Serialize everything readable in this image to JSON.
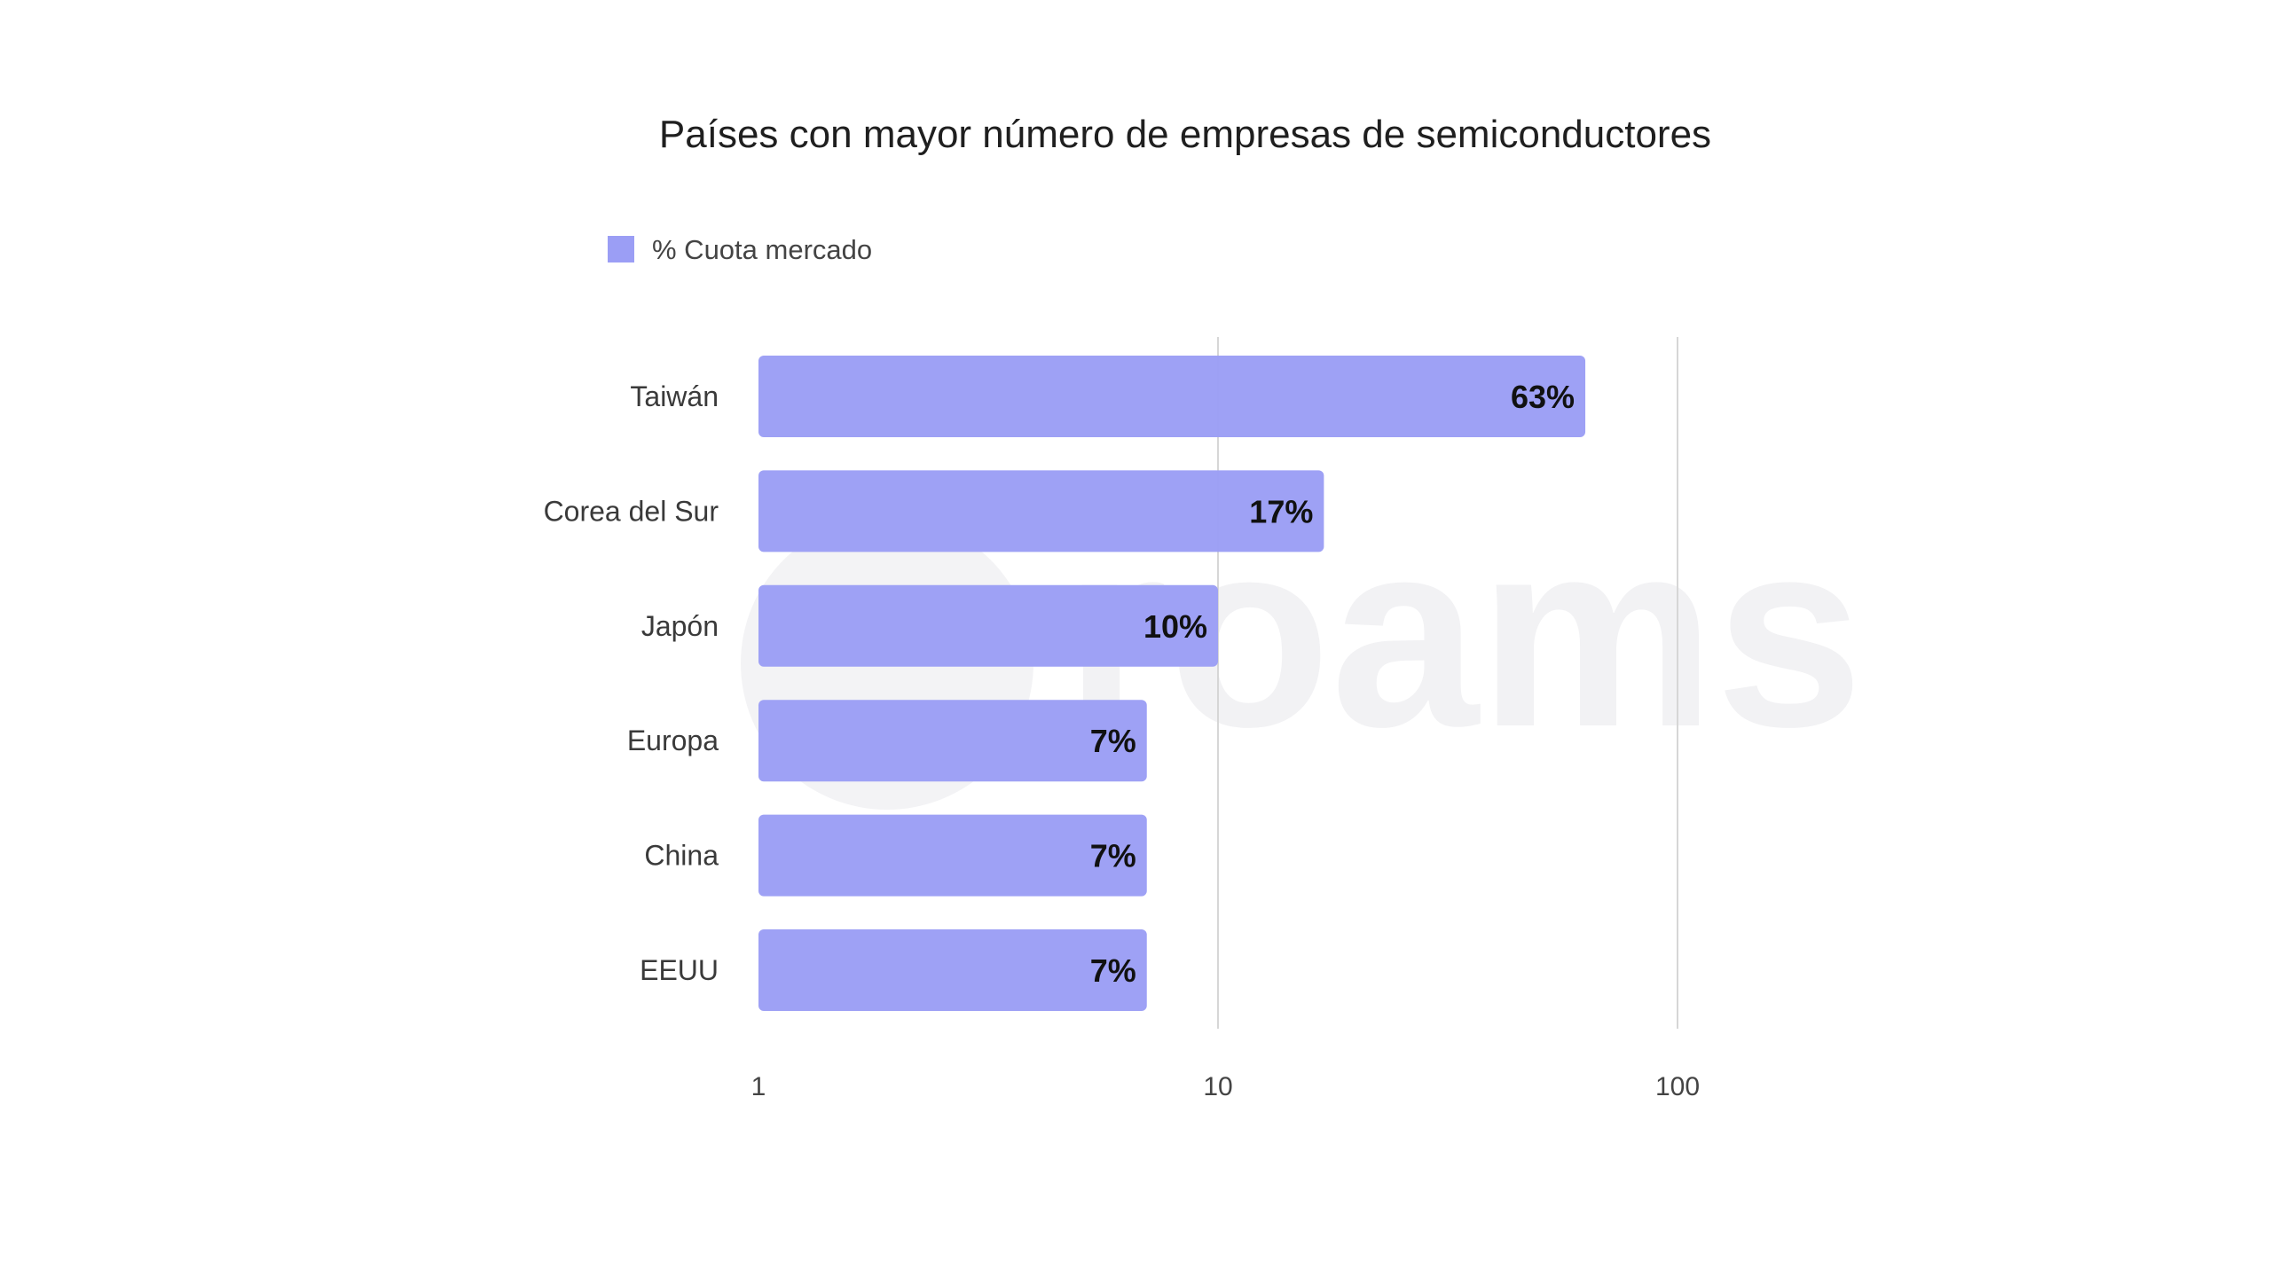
{
  "chart_data": {
    "type": "bar",
    "orientation": "horizontal",
    "title": "Países con mayor número de empresas de semiconductores",
    "legend": {
      "position": "top-left",
      "entries": [
        "% Cuota mercado"
      ]
    },
    "categories": [
      "Taiwán",
      "Corea del Sur",
      "Japón",
      "Europa",
      "China",
      "EEUU"
    ],
    "series": [
      {
        "name": "% Cuota mercado",
        "values": [
          63,
          17,
          10,
          7,
          7,
          7
        ],
        "data_labels": [
          "63%",
          "17%",
          "10%",
          "7%",
          "7%",
          "7%"
        ],
        "color": "#9b9ef5"
      }
    ],
    "x_scale": "log",
    "xlim": [
      1,
      100
    ],
    "x_ticks": [
      1,
      10,
      100
    ],
    "x_tick_labels": [
      "1",
      "10",
      "100"
    ],
    "grid": true
  },
  "colors": {
    "bar": "#9b9ef5",
    "label": "#111111",
    "grid": "#d6d6d6"
  },
  "watermark": {
    "text": "roams"
  }
}
